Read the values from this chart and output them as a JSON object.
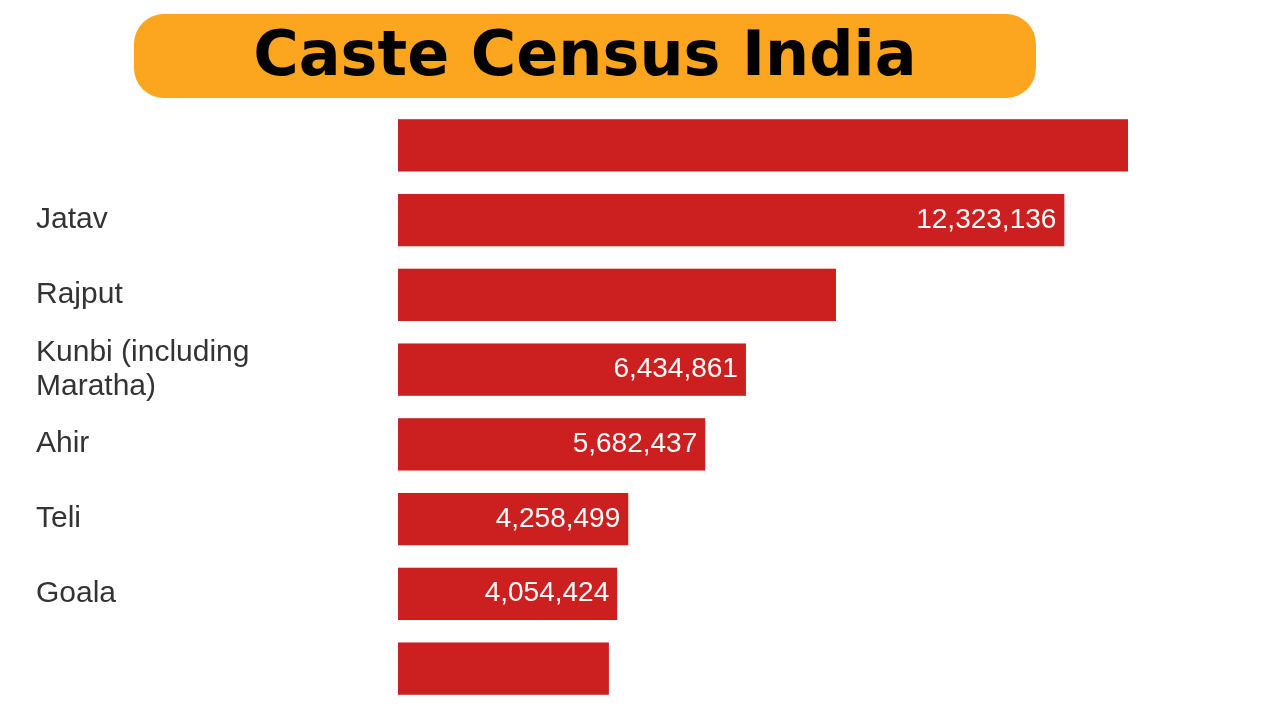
{
  "chart_data": {
    "type": "bar",
    "orientation": "horizontal",
    "title": "Caste Census India",
    "categories": [
      null,
      "Jatav",
      "Rajput",
      "Kunbi (including Maratha)",
      "Ahir",
      "Teli",
      "Goala",
      null
    ],
    "values": [
      13500000,
      12323136,
      8100000,
      6434861,
      5682437,
      4258499,
      4054424,
      3900000
    ],
    "value_labels": [
      null,
      "12,323,136",
      null,
      "6,434,861",
      "5,682,437",
      "4,258,499",
      "4,054,424",
      null
    ],
    "color": "#cc1f1f"
  }
}
